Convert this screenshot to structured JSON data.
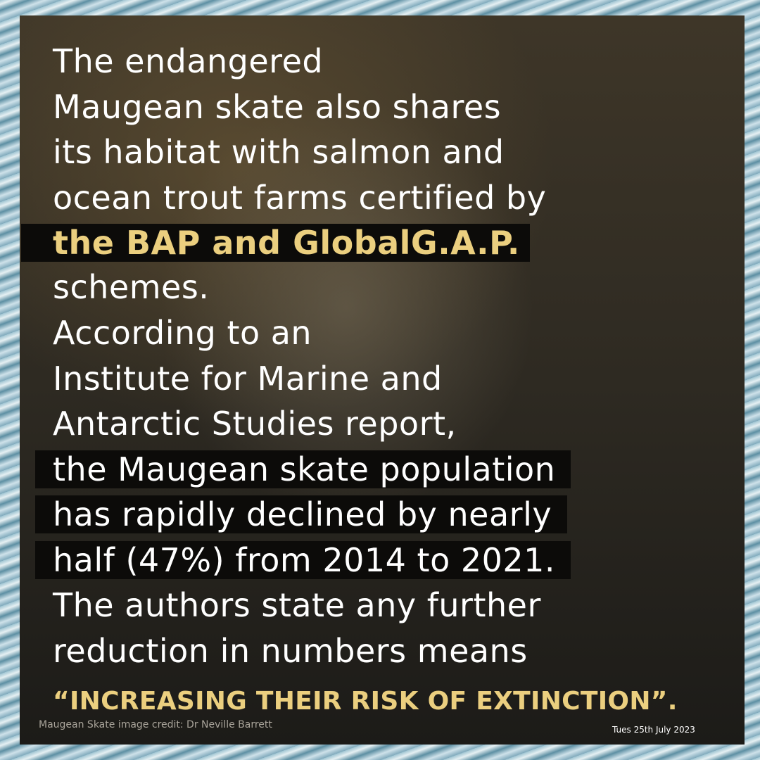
{
  "body": {
    "intro": [
      "The endangered",
      "Maugean skate also shares",
      "its habitat with salmon and",
      "ocean trout farms certified by"
    ],
    "highlight": "the BAP and GlobalG.A.P.",
    "middle": [
      "schemes.",
      "According to an",
      "Institute for Marine and",
      "Antarctic Studies report,"
    ],
    "boxed": [
      "the Maugean skate population",
      "has rapidly declined by nearly",
      "half (47%) from 2014 to 2021."
    ],
    "closing": [
      "The authors state any further",
      "reduction in numbers means"
    ],
    "quote": "“INCREASING THEIR RISK OF EXTINCTION”."
  },
  "footer": {
    "credit": "Maugean Skate image credit: Dr Neville Barrett",
    "date": "Tues 25th July 2023"
  }
}
